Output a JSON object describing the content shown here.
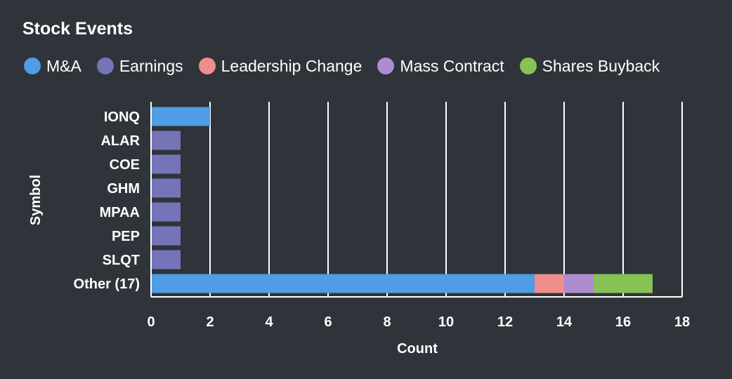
{
  "window": {
    "title": "Stock Events"
  },
  "legend": {
    "items": [
      {
        "label": "M&A",
        "color": "#4f9de5",
        "icon": "legend-swatch-ma-icon"
      },
      {
        "label": "Earnings",
        "color": "#7674b8",
        "icon": "legend-swatch-earnings-icon"
      },
      {
        "label": "Leadership Change",
        "color": "#ef8e8b",
        "icon": "legend-swatch-leadership-change-icon"
      },
      {
        "label": "Mass Contract",
        "color": "#ad8ccf",
        "icon": "legend-swatch-mass-contract-icon"
      },
      {
        "label": "Shares Buyback",
        "color": "#87c256",
        "icon": "legend-swatch-shares-buyback-icon"
      }
    ]
  },
  "chart_data": {
    "type": "bar",
    "orientation": "horizontal",
    "stacked": true,
    "categories": [
      "IONQ",
      "ALAR",
      "COE",
      "GHM",
      "MPAA",
      "PEP",
      "SLQT",
      "Other (17)"
    ],
    "series": [
      {
        "name": "M&A",
        "color": "#4f9de5",
        "values": [
          2,
          0,
          0,
          0,
          0,
          0,
          0,
          13
        ]
      },
      {
        "name": "Earnings",
        "color": "#7674b8",
        "values": [
          0,
          1,
          1,
          1,
          1,
          1,
          1,
          0
        ]
      },
      {
        "name": "Leadership Change",
        "color": "#ef8e8b",
        "values": [
          0,
          0,
          0,
          0,
          0,
          0,
          0,
          1
        ]
      },
      {
        "name": "Mass Contract",
        "color": "#ad8ccf",
        "values": [
          0,
          0,
          0,
          0,
          0,
          0,
          0,
          1
        ]
      },
      {
        "name": "Shares Buyback",
        "color": "#87c256",
        "values": [
          0,
          0,
          0,
          0,
          0,
          0,
          0,
          2
        ]
      }
    ],
    "x_ticks": [
      "0",
      "2",
      "4",
      "6",
      "8",
      "10",
      "12",
      "14",
      "16",
      "18"
    ],
    "xlabel": "Count",
    "ylabel": "Symbol",
    "xlim": [
      0,
      18
    ],
    "grid": "vertical",
    "legend_position": "top-left"
  }
}
